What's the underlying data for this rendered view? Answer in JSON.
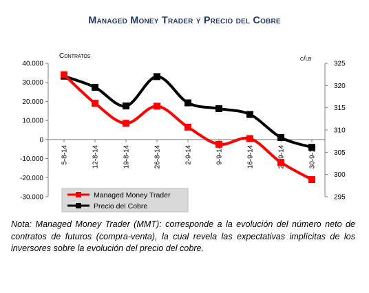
{
  "chart_data": {
    "type": "line",
    "title": "Managed Money Trader y Precio del Cobre",
    "categories": [
      "5-8-14",
      "12-8-14",
      "19-8-14",
      "26-8-14",
      "2-9-14",
      "9-9-14",
      "16-9-14",
      "23-9-14",
      "30-9-14"
    ],
    "y_left": {
      "label": "Contratos",
      "range": [
        -30000,
        40000
      ],
      "ticks": [
        "40.000",
        "30.000",
        "20.000",
        "10.000",
        "0",
        "-10.000",
        "-20.000",
        "-30.000"
      ]
    },
    "y_right": {
      "label": "c/lb",
      "range": [
        295,
        325
      ],
      "ticks": [
        "325",
        "320",
        "315",
        "310",
        "305",
        "300",
        "295"
      ]
    },
    "series": [
      {
        "name": "Managed Money Trader",
        "axis": "left",
        "color": "#ff0000",
        "values": [
          34000,
          19000,
          8500,
          17500,
          6500,
          -2500,
          500,
          -12000,
          -21000
        ]
      },
      {
        "name": "Precio del Cobre",
        "axis": "right",
        "color": "#000000",
        "values": [
          322.1,
          319.6,
          315.4,
          322.0,
          316.1,
          314.8,
          313.5,
          308.3,
          306.1
        ]
      }
    ],
    "legend_position": "bottom-left",
    "grid": false
  },
  "note": "Nota: Managed Money Trader (MMT): corresponde a la evolución del número neto de contratos de futuros (compra-venta), la cual revela las expectativas implícitas de los inversores sobre la evolución del precio del cobre."
}
